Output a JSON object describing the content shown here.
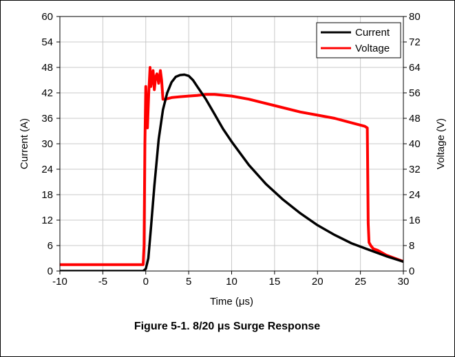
{
  "chart_data": {
    "type": "line",
    "caption": "Figure 5-1. 8/20 μs Surge Response",
    "xlabel": "Time (μs)",
    "ylabel_left": "Current (A)",
    "ylabel_right": "Voltage (V)",
    "xlim": [
      -10,
      30
    ],
    "ylim_left": [
      0,
      60
    ],
    "ylim_right": [
      0,
      80
    ],
    "x_ticks": [
      -10,
      -5,
      0,
      5,
      10,
      15,
      20,
      25,
      30
    ],
    "y_left_ticks": [
      0,
      6,
      12,
      18,
      24,
      30,
      36,
      42,
      48,
      54,
      60
    ],
    "y_right_ticks": [
      0,
      8,
      16,
      24,
      32,
      40,
      48,
      56,
      64,
      72,
      80
    ],
    "grid": true,
    "legend_position": "top-right",
    "series": [
      {
        "name": "Current",
        "axis": "left",
        "color": "#000000",
        "x": [
          -10,
          -0.3,
          0,
          0.3,
          0.6,
          1.0,
          1.5,
          2.0,
          2.5,
          3.0,
          3.5,
          4.0,
          4.5,
          5.0,
          5.5,
          6.0,
          7.0,
          8.0,
          9.0,
          10.0,
          12.0,
          14.0,
          16.0,
          18.0,
          20.0,
          22.0,
          24.0,
          26.0,
          28.0,
          30.0
        ],
        "y": [
          0,
          0,
          0.5,
          3,
          10,
          20,
          31,
          38,
          42,
          44.5,
          45.8,
          46.2,
          46.3,
          46,
          45,
          43.5,
          40.5,
          37,
          33.5,
          30.5,
          25,
          20.5,
          16.8,
          13.6,
          10.8,
          8.5,
          6.5,
          5,
          3.5,
          2.2
        ]
      },
      {
        "name": "Voltage",
        "axis": "right",
        "color": "#ff0000",
        "x": [
          -10,
          -0.3,
          -0.2,
          -0.1,
          0.0,
          0.1,
          0.2,
          0.35,
          0.5,
          0.6,
          0.7,
          0.85,
          1.0,
          1.15,
          1.3,
          1.5,
          1.7,
          1.85,
          2.0,
          2.3,
          3.0,
          4.0,
          5.0,
          6.0,
          7.0,
          8.0,
          10.0,
          12.0,
          15.0,
          18.0,
          20.0,
          22.0,
          25.5,
          25.8,
          25.9,
          26.0,
          26.2,
          26.5,
          27.0,
          28.0,
          29.0,
          30.0
        ],
        "y": [
          2,
          2,
          8,
          40,
          58,
          46,
          45,
          56,
          64,
          58,
          60,
          63,
          57,
          61,
          62,
          59,
          63,
          60,
          54,
          54,
          54.5,
          54.8,
          55,
          55.2,
          55.5,
          55.5,
          55,
          54,
          52,
          50,
          49,
          48,
          45.5,
          45,
          15,
          9,
          8,
          7,
          6.5,
          5,
          4,
          3
        ]
      }
    ]
  }
}
